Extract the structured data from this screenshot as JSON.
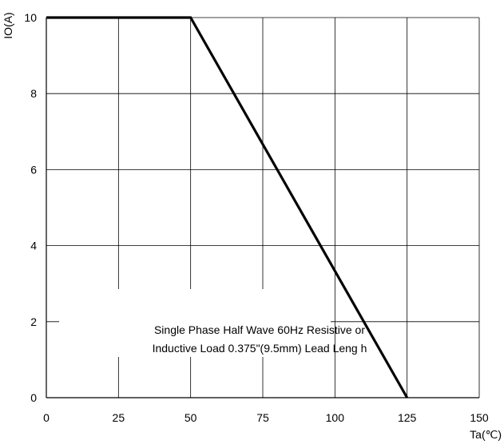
{
  "chart_data": {
    "type": "line",
    "xlabel": "Ta(℃)",
    "ylabel": "IO(A)",
    "xlim": [
      0,
      150
    ],
    "ylim": [
      0,
      10
    ],
    "x_ticks": [
      "0",
      "25",
      "50",
      "75",
      "100",
      "125",
      "150"
    ],
    "y_ticks": [
      "0",
      "2",
      "4",
      "6",
      "8",
      "10"
    ],
    "grid": true,
    "series": [
      {
        "x": [
          0,
          50,
          125
        ],
        "y": [
          10,
          10,
          0
        ]
      }
    ],
    "annotation": {
      "lines": [
        "Single Phase Half Wave 60Hz Resistive or",
        "Inductive Load 0.375\"(9.5mm) Lead Leng h"
      ]
    },
    "colors": {
      "line": "#000000",
      "grid": "#000000"
    }
  }
}
